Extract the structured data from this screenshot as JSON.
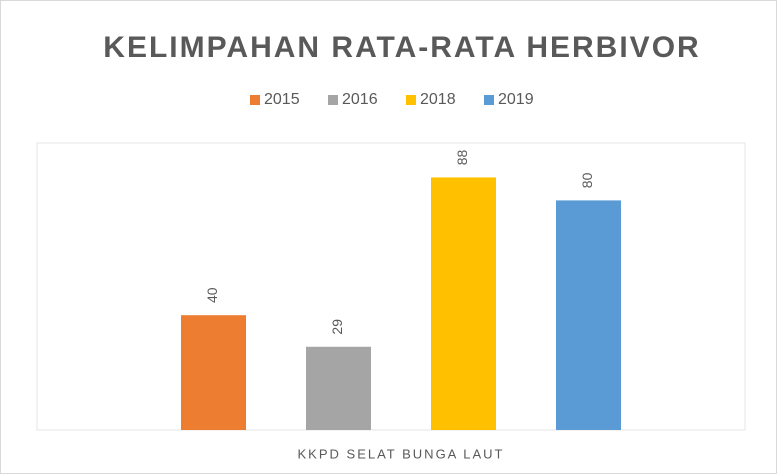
{
  "chart_data": {
    "type": "bar",
    "title": "KELIMPAHAN RATA-RATA HERBIVOR",
    "categories": [
      "KKPD SELAT BUNGA LAUT"
    ],
    "series": [
      {
        "name": "2015",
        "color": "#ed7d31",
        "values": [
          40
        ]
      },
      {
        "name": "2016",
        "color": "#a5a5a5",
        "values": [
          29
        ]
      },
      {
        "name": "2018",
        "color": "#ffc000",
        "values": [
          88
        ]
      },
      {
        "name": "2019",
        "color": "#5b9bd5",
        "values": [
          80
        ]
      }
    ],
    "ylim": [
      0,
      100
    ],
    "legend": "top"
  }
}
